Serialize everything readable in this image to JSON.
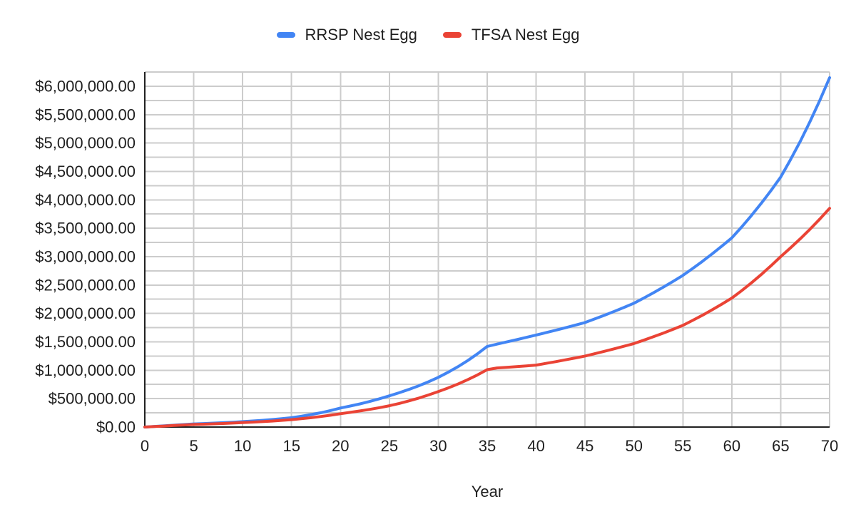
{
  "chart_data": {
    "type": "line",
    "title": "",
    "xlabel": "Year",
    "ylabel": "",
    "legend_position": "top",
    "grid": "on",
    "xlim": [
      0,
      70
    ],
    "ylim": [
      0,
      6250000
    ],
    "x_ticks": [
      0,
      5,
      10,
      15,
      20,
      25,
      30,
      35,
      40,
      45,
      50,
      55,
      60,
      65,
      70
    ],
    "y_grid_step": 250000,
    "y_tick_labels": [
      {
        "value": 0,
        "label": "$0.00"
      },
      {
        "value": 500000,
        "label": "$500,000.00"
      },
      {
        "value": 1000000,
        "label": "$1,000,000.00"
      },
      {
        "value": 1500000,
        "label": "$1,500,000.00"
      },
      {
        "value": 2000000,
        "label": "$2,000,000.00"
      },
      {
        "value": 2500000,
        "label": "$2,500,000.00"
      },
      {
        "value": 3000000,
        "label": "$3,000,000.00"
      },
      {
        "value": 3500000,
        "label": "$3,500,000.00"
      },
      {
        "value": 4000000,
        "label": "$4,000,000.00"
      },
      {
        "value": 4500000,
        "label": "$4,500,000.00"
      },
      {
        "value": 5000000,
        "label": "$5,000,000.00"
      },
      {
        "value": 5500000,
        "label": "$5,500,000.00"
      },
      {
        "value": 6000000,
        "label": "$6,000,000.00"
      }
    ],
    "series": [
      {
        "name": "RRSP Nest Egg",
        "color": "#4285f4",
        "points": [
          [
            0,
            0
          ],
          [
            5,
            55000
          ],
          [
            10,
            95000
          ],
          [
            15,
            165000
          ],
          [
            20,
            335000
          ],
          [
            25,
            550000
          ],
          [
            30,
            875000
          ],
          [
            35,
            1420000
          ],
          [
            36,
            1460000
          ],
          [
            40,
            1620000
          ],
          [
            45,
            1840000
          ],
          [
            50,
            2180000
          ],
          [
            55,
            2670000
          ],
          [
            60,
            3330000
          ],
          [
            65,
            4400000
          ],
          [
            70,
            6150000
          ]
        ]
      },
      {
        "name": "TFSA Nest Egg",
        "color": "#ea4335",
        "points": [
          [
            0,
            0
          ],
          [
            5,
            45000
          ],
          [
            10,
            78000
          ],
          [
            15,
            130000
          ],
          [
            20,
            235000
          ],
          [
            25,
            375000
          ],
          [
            30,
            625000
          ],
          [
            35,
            1010000
          ],
          [
            36,
            1040000
          ],
          [
            40,
            1090000
          ],
          [
            45,
            1250000
          ],
          [
            50,
            1470000
          ],
          [
            55,
            1790000
          ],
          [
            60,
            2270000
          ],
          [
            65,
            3000000
          ],
          [
            70,
            3850000
          ]
        ]
      }
    ]
  },
  "colors": {
    "gridline": "#cccccc",
    "axis": "#212121",
    "text": "#1f1f1f"
  }
}
